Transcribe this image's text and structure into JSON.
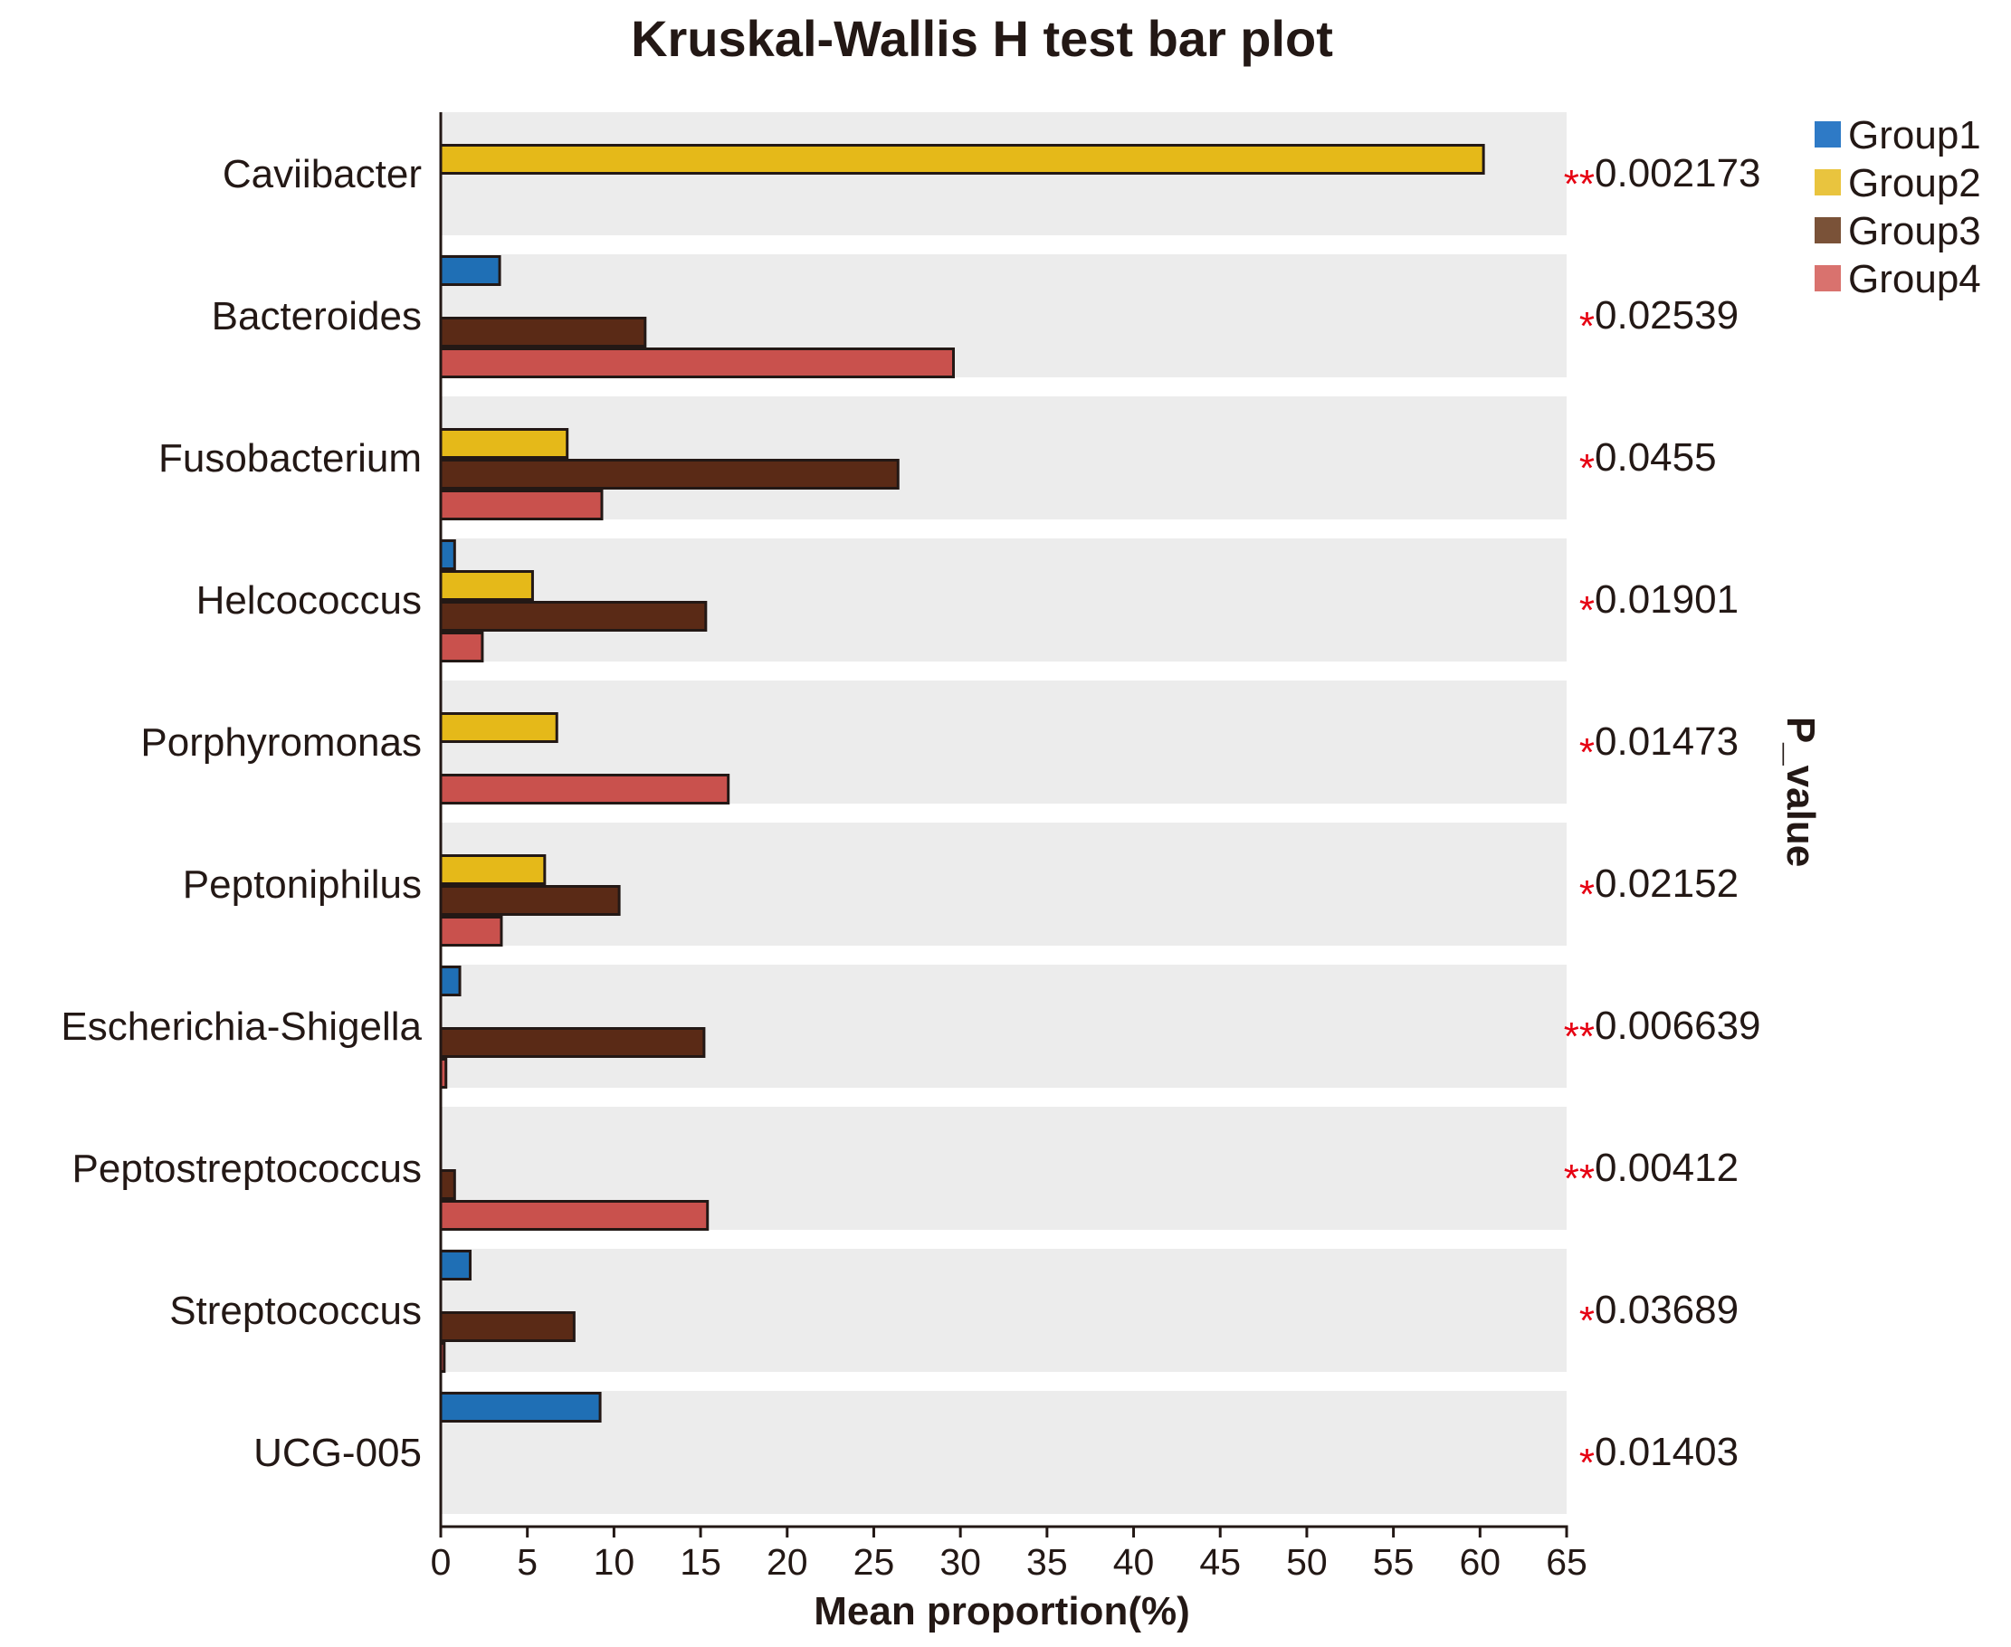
{
  "chart_data": {
    "type": "bar",
    "orientation": "horizontal",
    "title": "Kruskal-Wallis H test bar plot",
    "xlabel": "Mean proportion(%)",
    "right_axis_label": "P_value",
    "xlim": [
      0,
      65
    ],
    "xticks": [
      0,
      5,
      10,
      15,
      20,
      25,
      30,
      35,
      40,
      45,
      50,
      55,
      60,
      65
    ],
    "legend_position": "top-right",
    "categories": [
      "Caviibacter",
      "Bacteroides",
      "Fusobacterium",
      "Helcococcus",
      "Porphyromonas",
      "Peptoniphilus",
      "Escherichia-Shigella",
      "Peptostreptococcus",
      "Streptococcus",
      "UCG-005"
    ],
    "series": [
      {
        "name": "Group1",
        "color": "#1f6fb5",
        "values": [
          0,
          3.4,
          0,
          0.8,
          0,
          0,
          1.1,
          0,
          1.7,
          9.2
        ]
      },
      {
        "name": "Group2",
        "color": "#e5b919",
        "values": [
          60.2,
          0,
          7.3,
          5.3,
          6.7,
          6.0,
          0,
          0,
          0,
          0
        ]
      },
      {
        "name": "Group3",
        "color": "#5a2a16",
        "values": [
          0,
          11.8,
          26.4,
          15.3,
          0,
          10.3,
          15.2,
          0.8,
          7.7,
          0
        ]
      },
      {
        "name": "Group4",
        "color": "#c9514d",
        "values": [
          0,
          29.6,
          9.3,
          2.4,
          16.6,
          3.5,
          0.3,
          15.4,
          0.2,
          0
        ]
      }
    ],
    "legend_colors": [
      "#2e7ac6",
      "#e9c43e",
      "#7a5238",
      "#d9726e"
    ],
    "p_values": [
      {
        "stars": "**",
        "value": "0.002173"
      },
      {
        "stars": "*",
        "value": "0.02539"
      },
      {
        "stars": "*",
        "value": "0.0455"
      },
      {
        "stars": "*",
        "value": "0.01901"
      },
      {
        "stars": "*",
        "value": "0.01473"
      },
      {
        "stars": "*",
        "value": "0.02152"
      },
      {
        "stars": "**",
        "value": "0.006639"
      },
      {
        "stars": "**",
        "value": "0.00412"
      },
      {
        "stars": "*",
        "value": "0.03689"
      },
      {
        "stars": "*",
        "value": "0.01403"
      }
    ],
    "panel_color": "#ececec",
    "bar_edge_color": "#231815"
  }
}
